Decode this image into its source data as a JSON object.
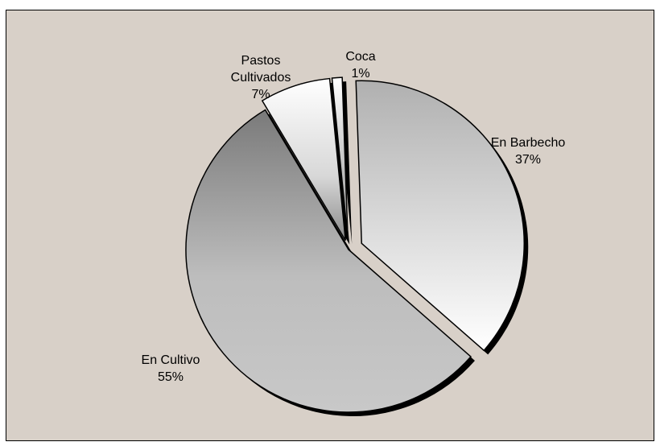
{
  "chart_data": {
    "type": "pie",
    "title": "",
    "background": "#d8d0c8",
    "slices": [
      {
        "label": "En Barbecho",
        "value": 37,
        "pct_label": "37%",
        "exploded": true
      },
      {
        "label": "En Cultivo",
        "value": 55,
        "pct_label": "55%",
        "exploded": false
      },
      {
        "label": "Pastos Cultivados",
        "label_lines": [
          "Pastos",
          "Cultivados"
        ],
        "value": 7,
        "pct_label": "7%",
        "exploded": true
      },
      {
        "label": "Coca",
        "value": 1,
        "pct_label": "1%",
        "exploded": true
      }
    ],
    "legend": "none"
  }
}
